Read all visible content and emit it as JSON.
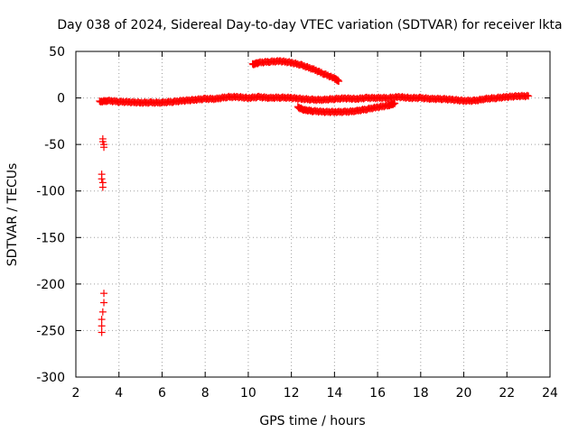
{
  "chart_data": {
    "type": "scatter",
    "title": "Day 038 of 2024, Sidereal Day-to-day VTEC variation (SDTVAR) for receiver lkta",
    "xlabel": "GPS time / hours",
    "ylabel": "SDTVAR / TECUs",
    "xlim": [
      2,
      24
    ],
    "ylim": [
      -300,
      50
    ],
    "xticks": [
      2,
      4,
      6,
      8,
      10,
      12,
      14,
      16,
      18,
      20,
      22,
      24
    ],
    "yticks": [
      50,
      0,
      -50,
      -100,
      -150,
      -200,
      -250,
      -300
    ],
    "grid": true,
    "marker": "+",
    "color": "#ff0000",
    "series": [
      {
        "name": "main_track",
        "x": [
          3.1,
          3.5,
          4.0,
          4.5,
          5.0,
          5.5,
          6.0,
          6.5,
          7.0,
          7.5,
          8.0,
          8.5,
          9.0,
          9.5,
          10.0,
          10.5,
          11.0,
          11.5,
          12.0,
          12.5,
          13.0,
          13.5,
          14.0,
          14.5,
          15.0,
          15.5,
          16.0,
          16.5,
          17.0,
          17.5,
          18.0,
          18.5,
          19.0,
          19.5,
          20.0,
          20.5,
          21.0,
          21.5,
          22.0,
          22.5,
          23.0
        ],
        "y": [
          -4,
          -3,
          -4,
          -4.5,
          -5,
          -5,
          -5,
          -4,
          -3,
          -2,
          -1,
          -1,
          1,
          1,
          0,
          1,
          0,
          0.5,
          0,
          -1,
          -2,
          -2,
          -1,
          -0.5,
          -1,
          0,
          0,
          0,
          1,
          0,
          0,
          -1,
          -1,
          -2,
          -3,
          -3,
          -1,
          0,
          1,
          2,
          2
        ]
      },
      {
        "name": "upper_arc",
        "x": [
          10.2,
          10.5,
          11.0,
          11.5,
          12.0,
          12.5,
          13.0,
          13.5,
          14.0,
          14.2
        ],
        "y": [
          36,
          38,
          39,
          39.5,
          38,
          35,
          31,
          26,
          21,
          18
        ]
      },
      {
        "name": "lower_arc",
        "x": [
          12.3,
          12.6,
          13.0,
          13.5,
          14.0,
          14.5,
          15.0,
          15.5,
          16.0,
          16.5,
          16.8
        ],
        "y": [
          -10,
          -13,
          -14,
          -15,
          -15,
          -15,
          -14,
          -12,
          -10,
          -8,
          -6
        ]
      },
      {
        "name": "early_drop",
        "x": [
          3.25,
          3.25,
          3.3,
          3.3,
          3.2,
          3.2,
          3.25,
          3.25,
          3.3,
          3.3,
          3.25,
          3.2,
          3.2,
          3.2
        ],
        "y": [
          -44,
          -47,
          -50,
          -53,
          -82,
          -87,
          -91,
          -96,
          -210,
          -220,
          -230,
          -238,
          -245,
          -252
        ]
      }
    ]
  }
}
